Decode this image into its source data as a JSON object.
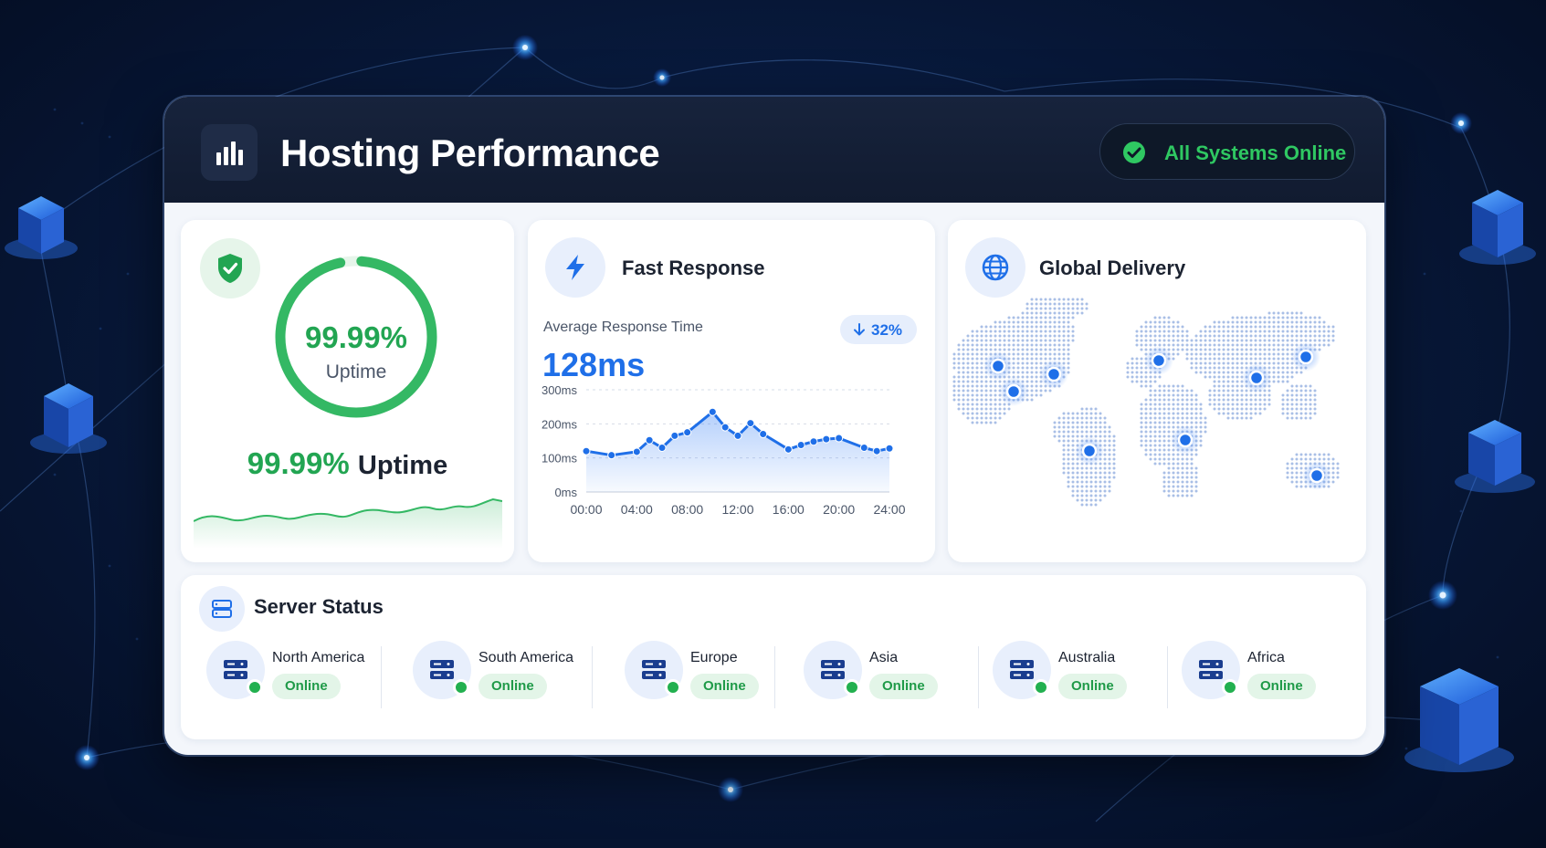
{
  "header": {
    "title": "Hosting Performance",
    "status_label": "All Systems Online",
    "logo_icon": "bar-chart-icon",
    "status_icon": "check-circle-icon"
  },
  "uptime": {
    "ring_value": "99.99%",
    "ring_label": "Uptime",
    "line_value": "99.99%",
    "line_label": "Uptime",
    "ring_fraction": 0.9999,
    "icon": "shield-check-icon"
  },
  "response": {
    "title": "Fast Response",
    "subtitle": "Average Response Time",
    "value": "128ms",
    "change": "32%",
    "icon": "lightning-icon"
  },
  "global": {
    "title": "Global Delivery",
    "icon": "globe-icon"
  },
  "servers": {
    "title": "Server Status",
    "icon": "server-icon",
    "items": [
      {
        "region": "North America",
        "status": "Online"
      },
      {
        "region": "South America",
        "status": "Online"
      },
      {
        "region": "Europe",
        "status": "Online"
      },
      {
        "region": "Asia",
        "status": "Online"
      },
      {
        "region": "Australia",
        "status": "Online"
      },
      {
        "region": "Africa",
        "status": "Online"
      }
    ]
  },
  "colors": {
    "accent_blue": "#1f6fe8",
    "accent_green": "#22a552",
    "header_bg": "#111b30"
  },
  "chart_data": {
    "type": "line",
    "title": "",
    "xlabel": "",
    "ylabel": "",
    "x": [
      "00:00",
      "02:00",
      "04:00",
      "05:00",
      "06:00",
      "07:00",
      "08:00",
      "10:00",
      "11:00",
      "12:00",
      "13:00",
      "14:00",
      "16:00",
      "17:00",
      "18:00",
      "19:00",
      "20:00",
      "22:00",
      "23:00",
      "24:00"
    ],
    "tick_labels_x": [
      "00:00",
      "04:00",
      "08:00",
      "12:00",
      "16:00",
      "20:00",
      "24:00"
    ],
    "tick_labels_y": [
      "0ms",
      "100ms",
      "200ms",
      "300ms"
    ],
    "series": [
      {
        "values": [
          120,
          108,
          118,
          152,
          130,
          165,
          175,
          235,
          190,
          165,
          202,
          170,
          125,
          138,
          148,
          155,
          158,
          130,
          120,
          128
        ]
      }
    ],
    "ylim": [
      0,
      300
    ],
    "grid": true
  }
}
